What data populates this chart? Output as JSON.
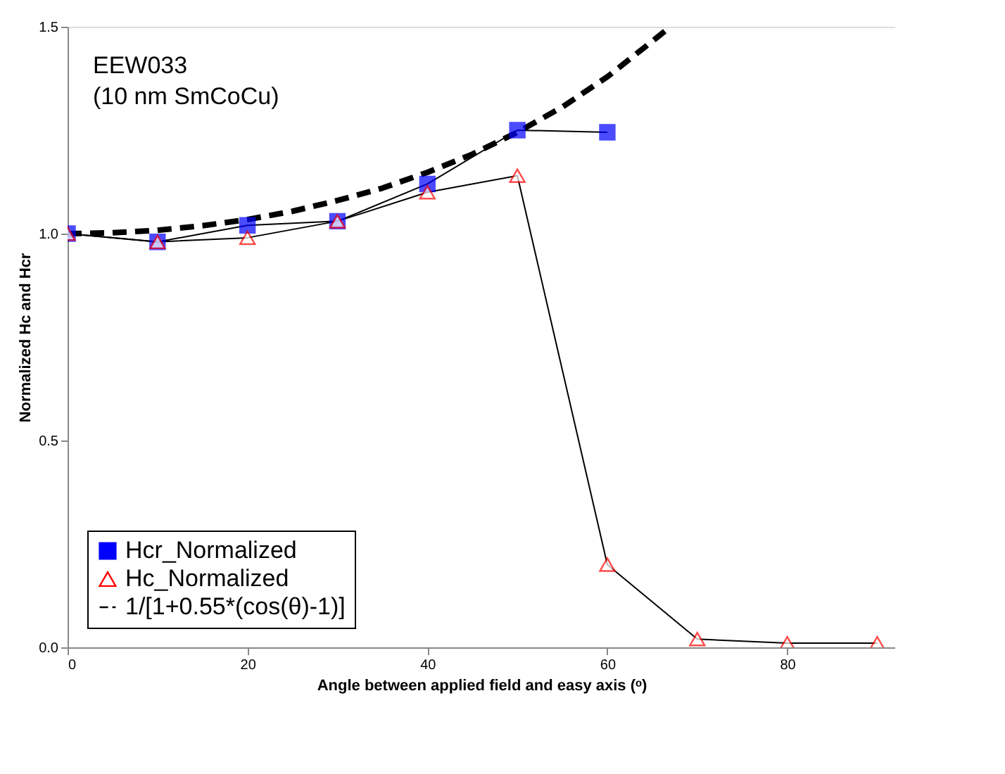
{
  "chart_data": {
    "type": "line",
    "xlabel": "Angle between applied field and easy axis (ᵒ)",
    "ylabel": "Normalized Hc and Hcr",
    "xlim": [
      0,
      92
    ],
    "xticks": [
      0,
      20,
      40,
      60,
      80
    ],
    "ylim": [
      0,
      1.5
    ],
    "yticks": [
      {
        "value": 0,
        "label": "0.0"
      },
      {
        "value": 0.5,
        "label": "0.5"
      },
      {
        "value": 1,
        "label": "1.0"
      },
      {
        "value": 1.5,
        "label": "1.5"
      }
    ],
    "grid": false,
    "legend": "bottom left",
    "annotations": [
      "EEW033",
      "(10 nm SmCoCu)"
    ],
    "series": [
      {
        "name": "Hcr_Normalized",
        "color": "#0000ff",
        "marker": "square",
        "line_style": "solid",
        "x": [
          0,
          10,
          20,
          30,
          40,
          50,
          60
        ],
        "values": [
          1.0,
          0.98,
          1.02,
          1.03,
          1.12,
          1.25,
          1.245
        ]
      },
      {
        "name": "Hc_Normalized",
        "color": "#ff0000",
        "marker": "triangle",
        "line_style": "solid",
        "x": [
          0,
          10,
          20,
          30,
          40,
          50,
          60,
          70,
          80,
          90
        ],
        "values": [
          1.0,
          0.98,
          0.99,
          1.03,
          1.1,
          1.14,
          0.2,
          0.02,
          0.01,
          0.01
        ]
      },
      {
        "name": "1/[1+0.55*(cos(θ)-1)]",
        "color": "#000000",
        "marker": "none",
        "line_style": "dashed",
        "x": [
          0,
          5,
          10,
          15,
          20,
          25,
          30,
          35,
          40,
          45,
          50,
          55,
          60,
          65,
          67
        ],
        "values": [
          1.0,
          1.002,
          1.008,
          1.019,
          1.034,
          1.054,
          1.08,
          1.11,
          1.148,
          1.192,
          1.245,
          1.306,
          1.379,
          1.465,
          1.5
        ]
      }
    ]
  }
}
